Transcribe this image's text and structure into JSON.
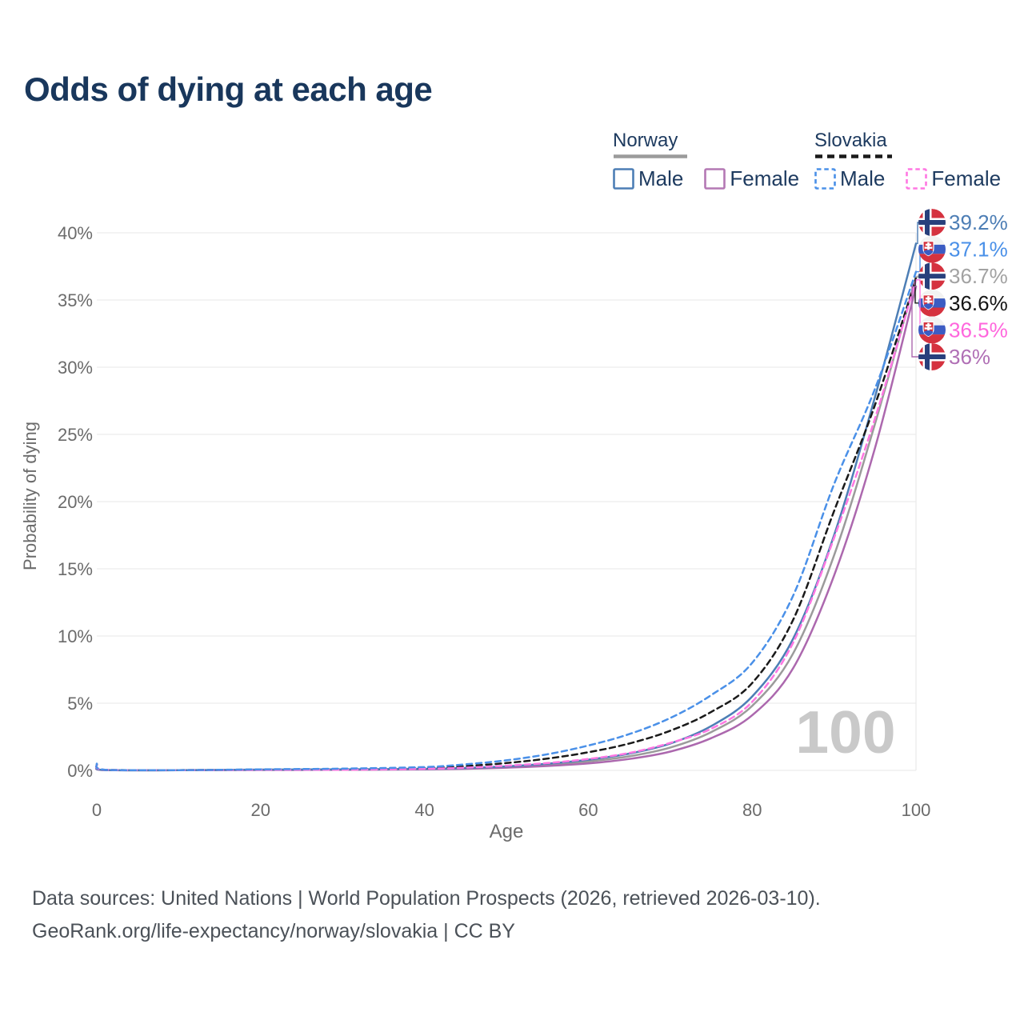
{
  "title": "Odds of dying at each age",
  "legend": {
    "groups": [
      {
        "name": "Norway",
        "line_style": "solid",
        "sample_color": "#9b9b9b",
        "items": [
          {
            "label": "Male",
            "color": "#4d7eb5",
            "style": "solid"
          },
          {
            "label": "Female",
            "color": "#b478b4",
            "style": "solid"
          }
        ]
      },
      {
        "name": "Slovakia",
        "line_style": "dashed",
        "sample_color": "#1a1a1a",
        "items": [
          {
            "label": "Male",
            "color": "#4a90e8",
            "style": "dashed"
          },
          {
            "label": "Female",
            "color": "#ff77e2",
            "style": "dashed"
          }
        ]
      }
    ]
  },
  "footer": {
    "sources": "Data sources: United Nations | World Population Prospects (2026, retrieved 2026-03-10).",
    "attribution": "GeoRank.org/life-expectancy/norway/slovakia | CC BY"
  },
  "chart_data": {
    "type": "line",
    "title": "Odds of dying at each age",
    "xlabel": "Age",
    "ylabel": "Probability of dying",
    "xlim": [
      0,
      100
    ],
    "ylim": [
      0,
      40
    ],
    "grid": "horizontal",
    "xticks": [
      0,
      20,
      40,
      60,
      80,
      100
    ],
    "xtick_labels": [
      "0",
      "20",
      "40",
      "60",
      "80",
      "100"
    ],
    "yticks": [
      0,
      5,
      10,
      15,
      20,
      25,
      30,
      35,
      40
    ],
    "ytick_labels": [
      "0%",
      "5%",
      "10%",
      "15%",
      "20%",
      "25%",
      "30%",
      "35%",
      "40%"
    ],
    "hover_age_watermark": "100",
    "ages": [
      0,
      1,
      10,
      20,
      30,
      40,
      45,
      50,
      55,
      60,
      65,
      70,
      75,
      80,
      85,
      90,
      95,
      100
    ],
    "series": [
      {
        "name": "Norway Male",
        "country": "Norway",
        "sex": "male",
        "style": "solid",
        "color": "#4d7eb5",
        "label_color": "#4d7eb5",
        "flag": "norway",
        "end_label": "39.2%",
        "values": [
          0.22,
          0.03,
          0.01,
          0.06,
          0.08,
          0.12,
          0.18,
          0.3,
          0.5,
          0.8,
          1.25,
          2.0,
          3.3,
          5.5,
          9.8,
          17.5,
          27.8,
          39.2
        ]
      },
      {
        "name": "Slovakia Male",
        "country": "Slovakia",
        "sex": "male",
        "style": "dashed",
        "color": "#4a90e8",
        "label_color": "#4a90e8",
        "flag": "slovakia",
        "end_label": "37.1%",
        "values": [
          0.5,
          0.05,
          0.02,
          0.08,
          0.13,
          0.25,
          0.45,
          0.75,
          1.2,
          1.85,
          2.7,
          3.9,
          5.6,
          8.0,
          13.0,
          21.3,
          28.4,
          37.1
        ]
      },
      {
        "name": "Norway Total",
        "country": "Norway",
        "sex": "total",
        "style": "solid",
        "color": "#9b9b9b",
        "label_color": "#a2a2a2",
        "flag": "norway",
        "end_label": "36.7%",
        "values": [
          0.2,
          0.03,
          0.01,
          0.05,
          0.06,
          0.1,
          0.15,
          0.25,
          0.42,
          0.66,
          1.05,
          1.7,
          2.85,
          4.8,
          8.7,
          16.0,
          25.8,
          36.7
        ]
      },
      {
        "name": "Slovakia Total",
        "country": "Slovakia",
        "sex": "total",
        "style": "dashed",
        "color": "#1a1a1a",
        "label_color": "#151515",
        "flag": "slovakia",
        "end_label": "36.6%",
        "values": [
          0.46,
          0.04,
          0.02,
          0.06,
          0.09,
          0.18,
          0.32,
          0.55,
          0.88,
          1.35,
          2.0,
          2.95,
          4.35,
          6.5,
          11.2,
          19.3,
          27.2,
          36.6
        ]
      },
      {
        "name": "Slovakia Female",
        "country": "Slovakia",
        "sex": "female",
        "style": "dashed",
        "color": "#ff77e2",
        "label_color": "#ff66dd",
        "flag": "slovakia",
        "end_label": "36.5%",
        "values": [
          0.42,
          0.04,
          0.02,
          0.04,
          0.05,
          0.12,
          0.2,
          0.35,
          0.55,
          0.85,
          1.3,
          2.05,
          3.1,
          5.1,
          9.5,
          17.3,
          26.2,
          36.5
        ]
      },
      {
        "name": "Norway Female",
        "country": "Norway",
        "sex": "female",
        "style": "solid",
        "color": "#ac68ae",
        "label_color": "#b06fb5",
        "flag": "norway",
        "end_label": "36%",
        "values": [
          0.18,
          0.02,
          0.01,
          0.03,
          0.04,
          0.08,
          0.12,
          0.2,
          0.33,
          0.52,
          0.85,
          1.4,
          2.4,
          4.1,
          7.6,
          14.5,
          24.0,
          36.0
        ]
      }
    ]
  }
}
